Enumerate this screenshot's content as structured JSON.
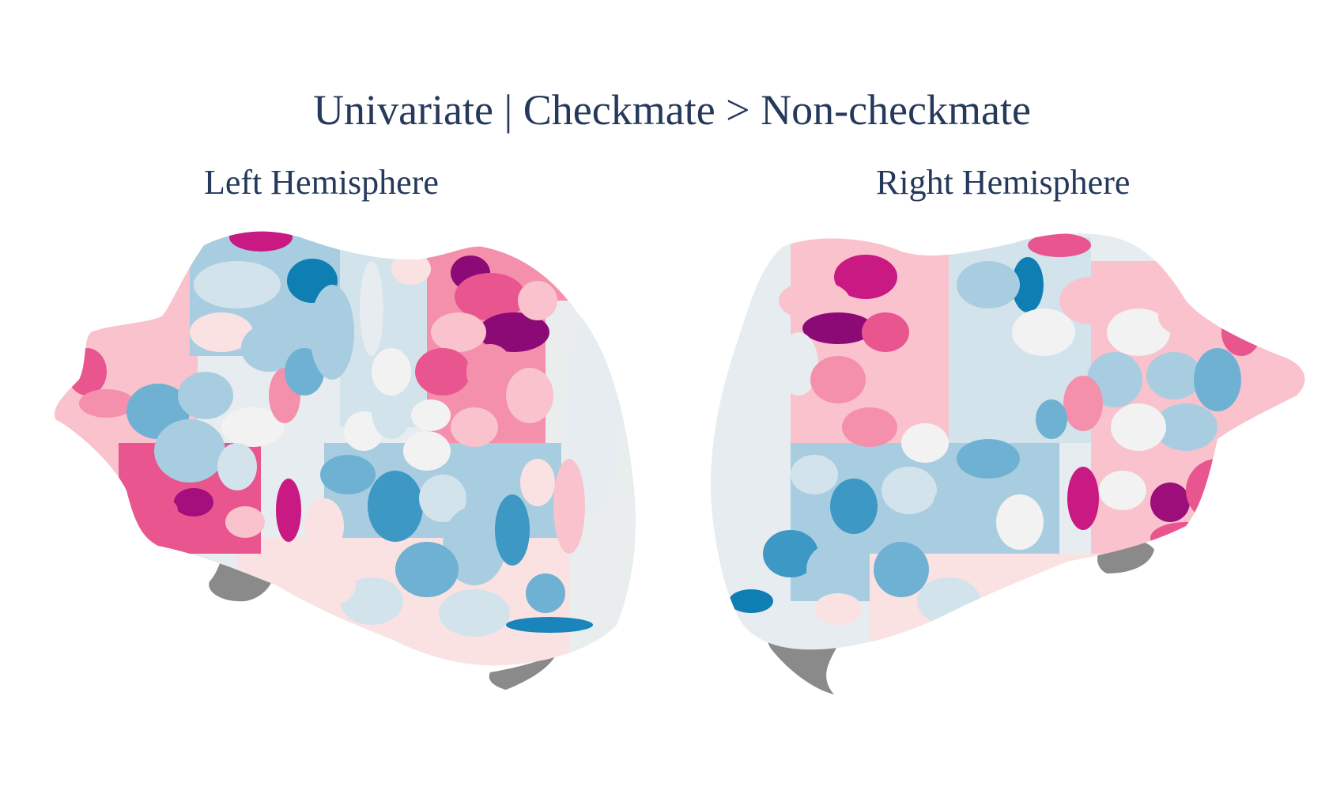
{
  "title": "Univariate | Checkmate > Non-checkmate",
  "left_label": "Left Hemisphere",
  "right_label": "Right Hemisphere",
  "palette": {
    "dark_magenta": "#8b0a75",
    "magenta": "#c81a82",
    "hot_pink": "#e8558f",
    "pink": "#f48fac",
    "light_pink": "#f9c2cc",
    "pale_pink": "#fbe2e2",
    "off_white": "#f2f2f2",
    "pale_blue": "#d2e3ec",
    "light_blue": "#a9cde0",
    "mid_blue": "#6fb1d2",
    "blue": "#3e98c4",
    "deep_blue": "#0f7fb3",
    "medial_wall": "#8a8a8a",
    "text": "#25395b"
  }
}
